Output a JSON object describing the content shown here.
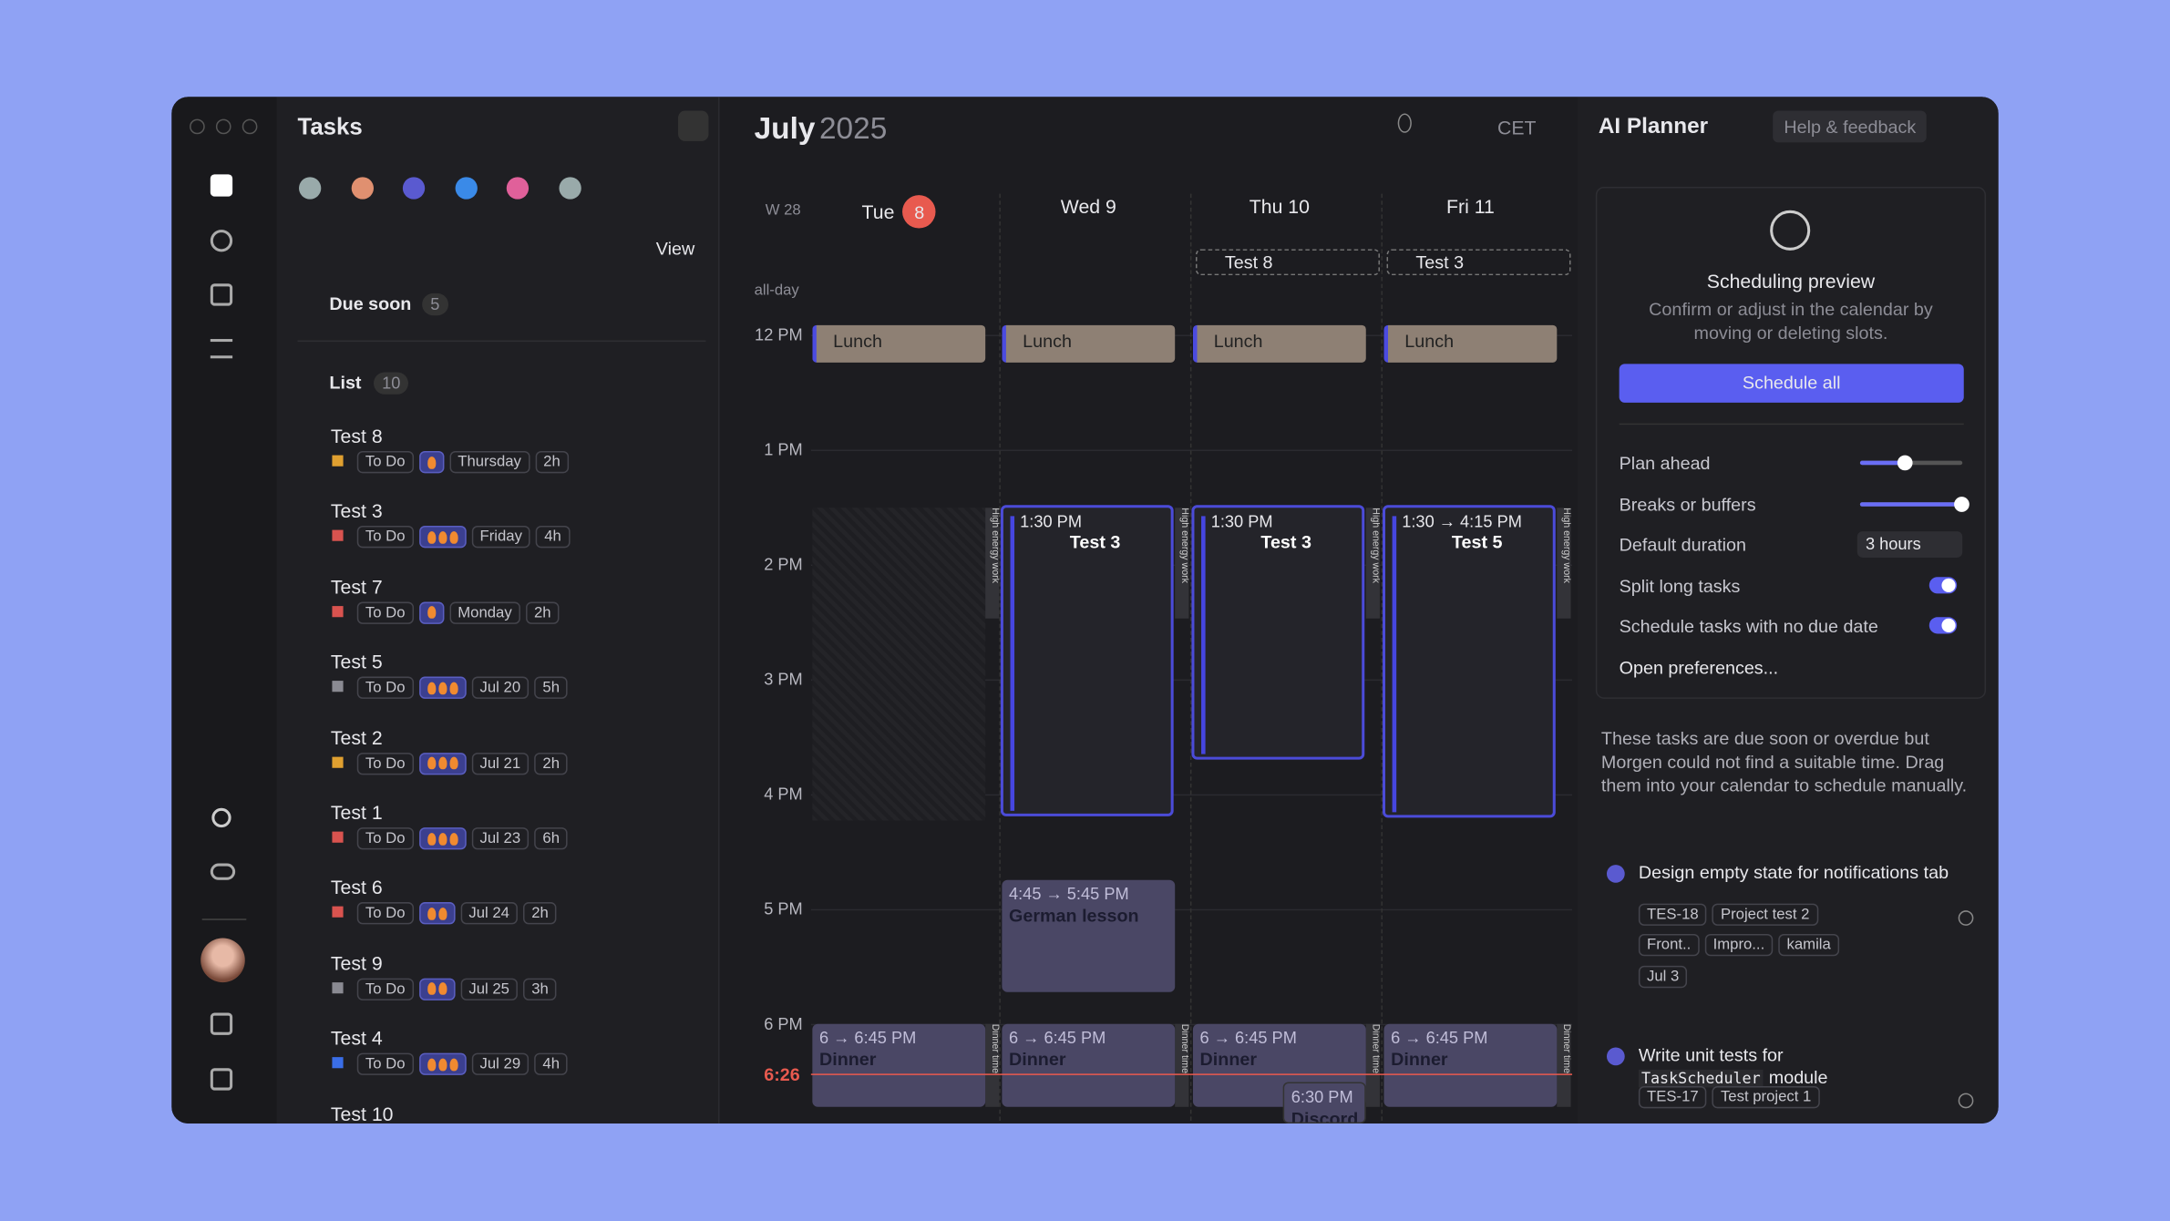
{
  "tasks_panel": {
    "title": "Tasks",
    "view": "View",
    "due_soon": {
      "label": "Due soon",
      "count": "5"
    },
    "list": {
      "label": "List",
      "count": "10"
    },
    "items": [
      {
        "title": "Test 8",
        "status": "To Do",
        "energy": 1,
        "due": "Thursday",
        "duration": "2h",
        "flag": "#e0a030"
      },
      {
        "title": "Test 3",
        "status": "To Do",
        "energy": 3,
        "due": "Friday",
        "duration": "4h",
        "flag": "#d9534f"
      },
      {
        "title": "Test 7",
        "status": "To Do",
        "energy": 1,
        "due": "Monday",
        "duration": "2h",
        "flag": "#d9534f"
      },
      {
        "title": "Test 5",
        "status": "To Do",
        "energy": 3,
        "due": "Jul 20",
        "duration": "5h",
        "flag": "#8a8a92"
      },
      {
        "title": "Test 2",
        "status": "To Do",
        "energy": 3,
        "due": "Jul 21",
        "duration": "2h",
        "flag": "#e0a030"
      },
      {
        "title": "Test 1",
        "status": "To Do",
        "energy": 3,
        "due": "Jul 23",
        "duration": "6h",
        "flag": "#d9534f"
      },
      {
        "title": "Test 6",
        "status": "To Do",
        "energy": 2,
        "due": "Jul 24",
        "duration": "2h",
        "flag": "#d9534f"
      },
      {
        "title": "Test 9",
        "status": "To Do",
        "energy": 2,
        "due": "Jul 25",
        "duration": "3h",
        "flag": "#8a8a92"
      },
      {
        "title": "Test 4",
        "status": "To Do",
        "energy": 3,
        "due": "Jul 29",
        "duration": "4h",
        "flag": "#3a6ee8"
      },
      {
        "title": "Test 10"
      }
    ]
  },
  "calendar": {
    "month": "July",
    "year": "2025",
    "timezone": "CET",
    "week": "W 28",
    "all_day": "all-day",
    "now": "6:26",
    "days": [
      {
        "name": "Tue",
        "date": "8"
      },
      {
        "name": "Wed 9"
      },
      {
        "name": "Thu 10"
      },
      {
        "name": "Fri 11"
      }
    ],
    "all_day_events": [
      {
        "day": 2,
        "title": "Test 8"
      },
      {
        "day": 3,
        "title": "Test 3"
      }
    ],
    "hours": [
      "12 PM",
      "1 PM",
      "2 PM",
      "3 PM",
      "4 PM",
      "5 PM",
      "6 PM"
    ],
    "lunch": "Lunch",
    "energy_block": "High energy work",
    "dinner_block": "Dinner time",
    "events": [
      {
        "day": 1,
        "time": "1:30 PM",
        "title": "Test 3",
        "kind": "task"
      },
      {
        "day": 2,
        "time": "1:30 PM",
        "title": "Test 3",
        "kind": "task"
      },
      {
        "day": 3,
        "time": "1:30 → 4:15 PM",
        "title": "Test 5",
        "kind": "task"
      },
      {
        "day": 1,
        "time": "4:45 → 5:45 PM",
        "title": "German lesson",
        "kind": "lesson"
      },
      {
        "day": 0,
        "time": "6 → 6:45 PM",
        "title": "Dinner",
        "kind": "dinner"
      },
      {
        "day": 1,
        "time": "6 → 6:45 PM",
        "title": "Dinner",
        "kind": "dinner"
      },
      {
        "day": 2,
        "time": "6 → 6:45 PM",
        "title": "Dinner",
        "kind": "dinner"
      },
      {
        "day": 3,
        "time": "6 → 6:45 PM",
        "title": "Dinner",
        "kind": "dinner"
      },
      {
        "day": 2,
        "time": "6:30 PM",
        "title": "Discord",
        "kind": "small"
      }
    ]
  },
  "planner": {
    "title": "AI Planner",
    "help": "Help & feedback",
    "preview_title": "Scheduling preview",
    "preview_text": "Confirm or adjust in the calendar by moving or deleting slots.",
    "button": "Schedule all",
    "plan_ahead": {
      "label": "Plan ahead",
      "value": 45
    },
    "breaks": {
      "label": "Breaks or buffers",
      "value": 100
    },
    "duration": {
      "label": "Default duration",
      "value": "3 hours"
    },
    "split": {
      "label": "Split long tasks",
      "on": true
    },
    "no_due": {
      "label": "Schedule tasks with no due date",
      "on": true
    },
    "prefs": "Open preferences...",
    "note": "These tasks are due soon or overdue but Morgen could not find a suitable time. Drag them into your calendar to schedule manually.",
    "tasks": [
      {
        "title": "Design empty state for notifications tab",
        "id": "TES-18",
        "project": "Project test 2",
        "tags": [
          "Front..",
          "Impro...",
          "kamila"
        ],
        "date": "Jul 3"
      },
      {
        "title": "Write unit tests for",
        "code": "TaskScheduler",
        "title_end": "module",
        "id": "TES-17",
        "project": "Test project 1"
      }
    ]
  }
}
